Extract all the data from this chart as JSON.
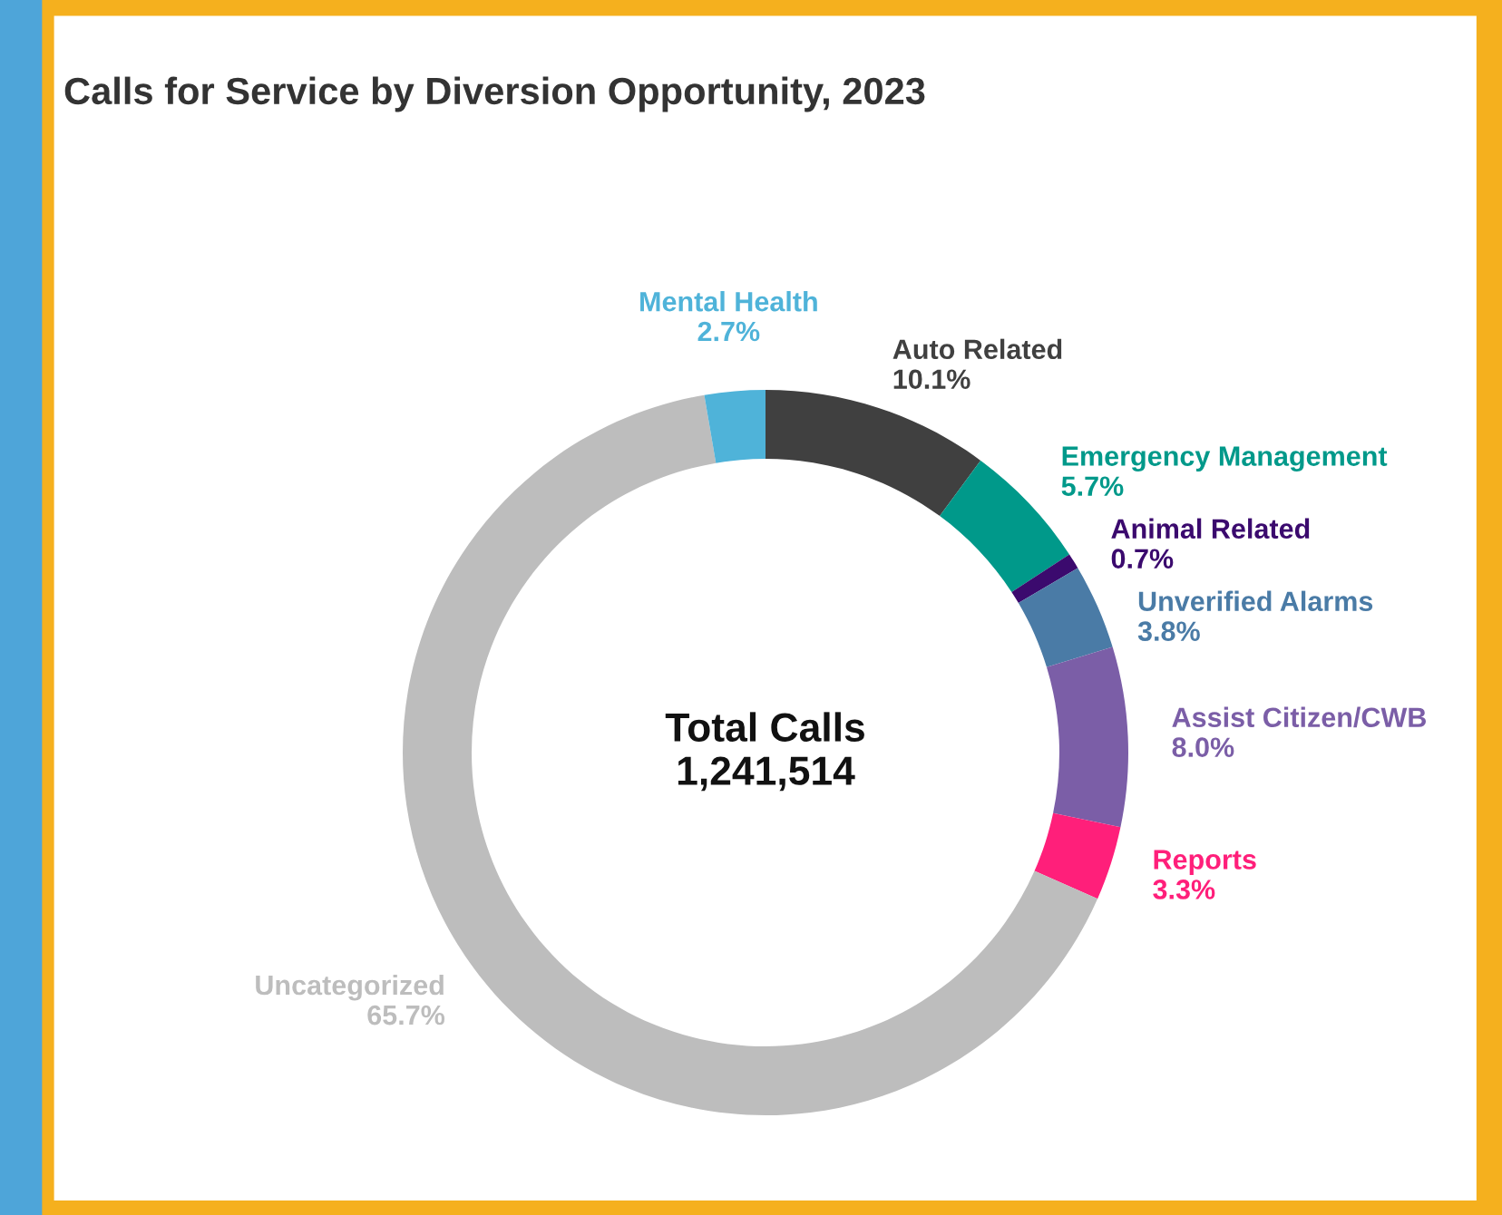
{
  "chart_data": {
    "type": "donut",
    "title": "Calls for Service by Diversion Opportunity, 2023",
    "categories": [
      "Auto Related",
      "Emergency Management",
      "Animal Related",
      "Unverified Alarms",
      "Assist Citizen/CWB",
      "Reports",
      "Uncategorized",
      "Mental Health"
    ],
    "values": [
      10.1,
      5.7,
      0.7,
      3.8,
      8.0,
      3.3,
      65.7,
      2.7
    ],
    "value_labels": [
      "10.1%",
      "5.7%",
      "0.7%",
      "3.8%",
      "8.0%",
      "3.3%",
      "65.7%",
      "2.7%"
    ],
    "colors": [
      "#404040",
      "#00998a",
      "#3b0a6e",
      "#4a7ba6",
      "#7b5ea7",
      "#ff1f7a",
      "#bdbdbd",
      "#4fb3d9"
    ],
    "annotations": [
      "Total Calls\n1,241,514"
    ],
    "legend": false
  }
}
